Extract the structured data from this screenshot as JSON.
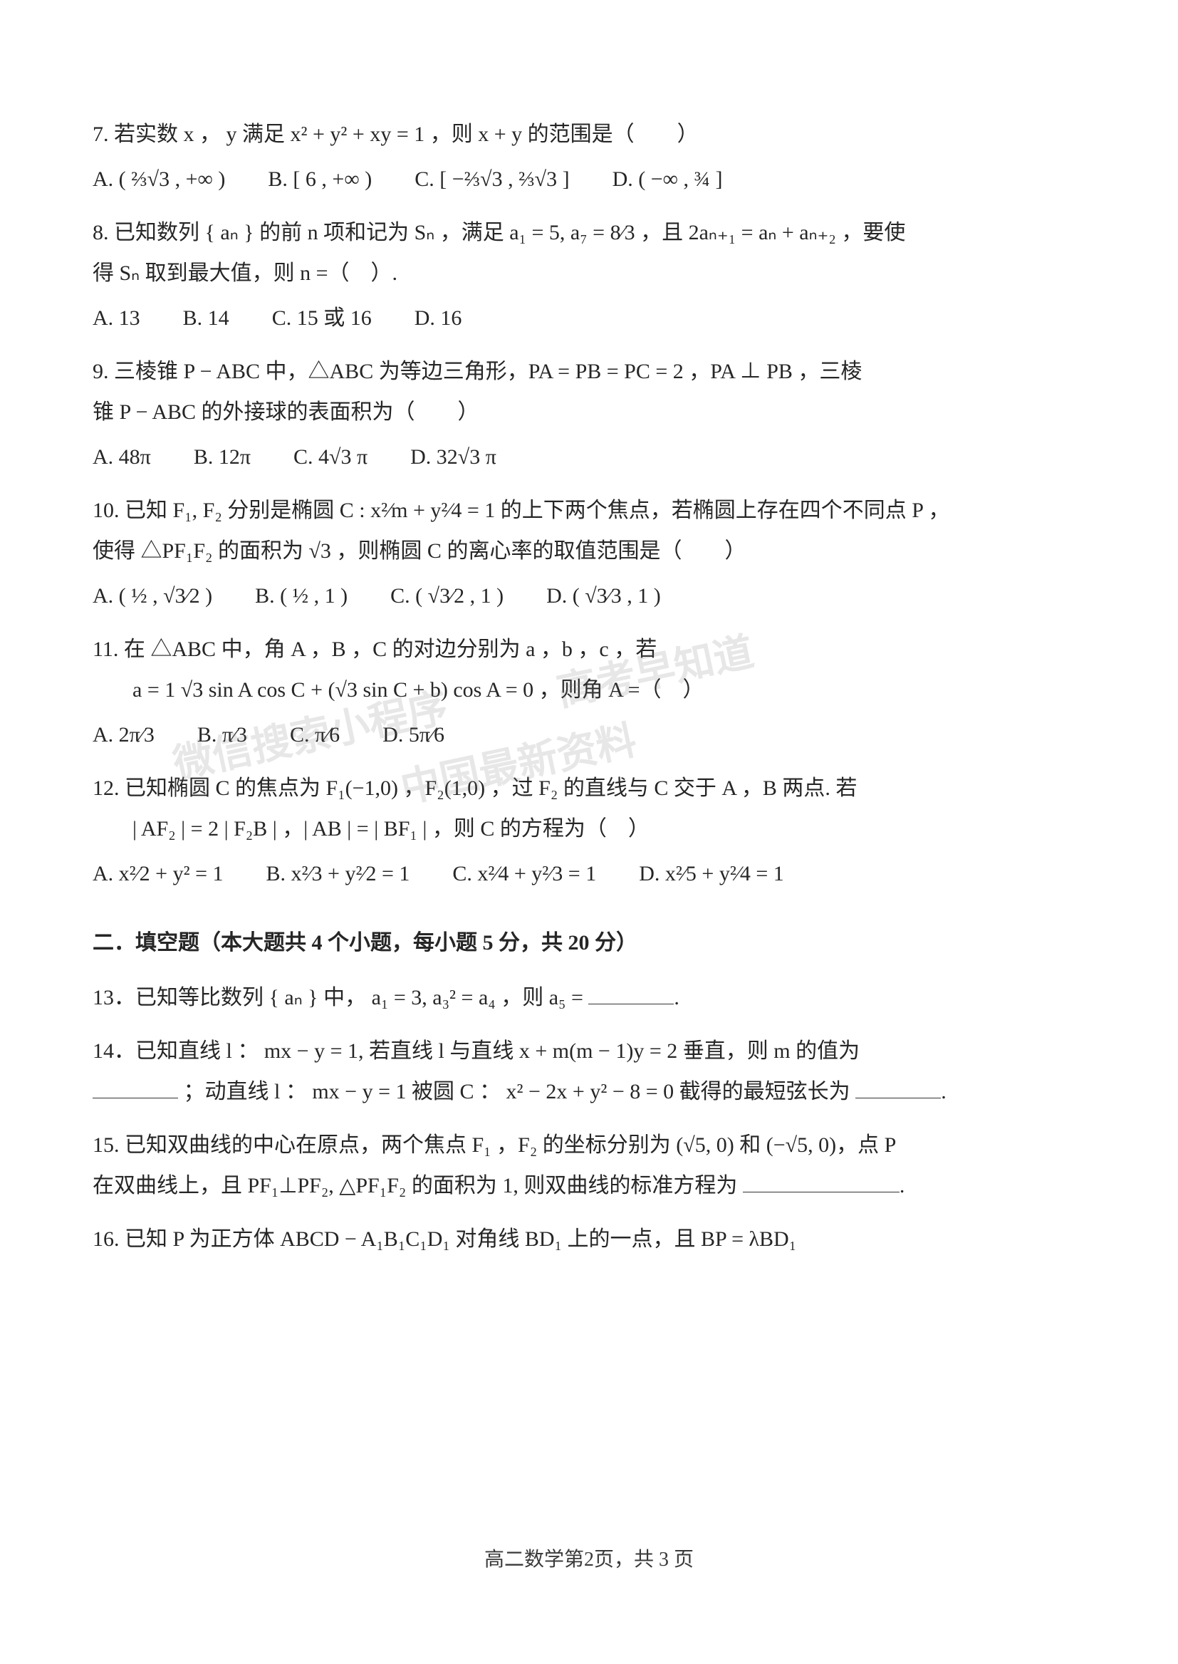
{
  "page": {
    "footer": "高二数学第2页，共 3 页",
    "background_color": "#ffffff",
    "text_color": "#262626",
    "font_size_pt": 12
  },
  "watermarks": {
    "line1": "高考早知道",
    "line2": "微信搜索小程序",
    "line3": "中国最新资料"
  },
  "questions": {
    "q7": {
      "stem": "7. 若实数 x ， y 满足 x² + y² + xy = 1 ，则 x + y 的范围是（　　）",
      "A": "A.  ( ⅔√3 , +∞ )",
      "B": "B.  [ 6 , +∞ )",
      "C": "C.  [ −⅔√3 , ⅔√3 ]",
      "D": "D.  ( −∞ , ¾ ]"
    },
    "q8": {
      "stem_a": "8. 已知数列 { aₙ } 的前 n 项和记为 Sₙ ，满足 a₁ = 5, a₇ = 8⁄3 ，且 2aₙ₊₁ = aₙ + aₙ₊₂ ，要使",
      "stem_b": "得 Sₙ 取到最大值，则 n =（　）.",
      "A": "A.  13",
      "B": "B.  14",
      "C": "C.  15 或 16",
      "D": "D.  16"
    },
    "q9": {
      "stem_a": "9. 三棱锥 P − ABC 中，△ABC 为等边三角形，PA = PB = PC = 2 ，PA ⊥ PB ，三棱",
      "stem_b": "锥 P − ABC 的外接球的表面积为（　　）",
      "A": "A.  48π",
      "B": "B.  12π",
      "C": "C.  4√3 π",
      "D": "D.  32√3 π"
    },
    "q10": {
      "stem_a": "10. 已知 F₁, F₂ 分别是椭圆 C : x²⁄m + y²⁄4 = 1 的上下两个焦点，若椭圆上存在四个不同点 P ，",
      "stem_b": "使得 △PF₁F₂ 的面积为 √3 ，则椭圆 C 的离心率的取值范围是（　　）",
      "A": "A.  ( ½ , √3⁄2 )",
      "B": "B.  ( ½ , 1 )",
      "C": "C.  ( √3⁄2 , 1 )",
      "D": "D.  ( √3⁄3 , 1 )"
    },
    "q11": {
      "stem_a": "11. 在 △ABC 中，角 A ，B ，C 的对边分别为 a ，b ，c ，若",
      "stem_b": "a = 1  √3 sin A cos C + (√3 sin C + b) cos A = 0 ，则角 A =（　）",
      "A": "A.  2π⁄3",
      "B": "B.  π⁄3",
      "C": "C.  π⁄6",
      "D": "D.  5π⁄6"
    },
    "q12": {
      "stem_a": "12. 已知椭圆 C 的焦点为 F₁(−1,0) ，F₂(1,0) ，过 F₂ 的直线与 C 交于 A ，B 两点. 若",
      "stem_b": "| AF₂ | = 2 | F₂B | ，| AB | = | BF₁ | ，则 C 的方程为（　）",
      "A": "A.  x²⁄2 + y² = 1",
      "B": "B.  x²⁄3 + y²⁄2 = 1",
      "C": "C.  x²⁄4 + y²⁄3 = 1",
      "D": "D.  x²⁄5 + y²⁄4 = 1"
    }
  },
  "section2": {
    "title": "二．填空题（本大题共 4 个小题，每小题 5 分，共 20 分）",
    "q13": "13．已知等比数列 { aₙ } 中， a₁ = 3, a₃² = a₄ ，则 a₅ = ",
    "q14a": "14．已知直线 l ：  mx − y = 1, 若直线 l 与直线 x + m(m − 1)y = 2 垂直，则 m 的值为",
    "q14b": "；动直线 l ：  mx − y = 1 被圆 C ：  x² − 2x + y² − 8 = 0 截得的最短弦长为",
    "q15a": "15. 已知双曲线的中心在原点，两个焦点 F₁ ，F₂ 的坐标分别为 (√5, 0) 和 (−√5, 0)，点 P",
    "q15b": "在双曲线上，且 PF₁⊥PF₂, △PF₁F₂ 的面积为 1, 则双曲线的标准方程为 ",
    "q16": "16. 已知  P 为正方体 ABCD − A₁B₁C₁D₁ 对角线 BD₁ 上的一点，且 BP = λBD₁"
  }
}
